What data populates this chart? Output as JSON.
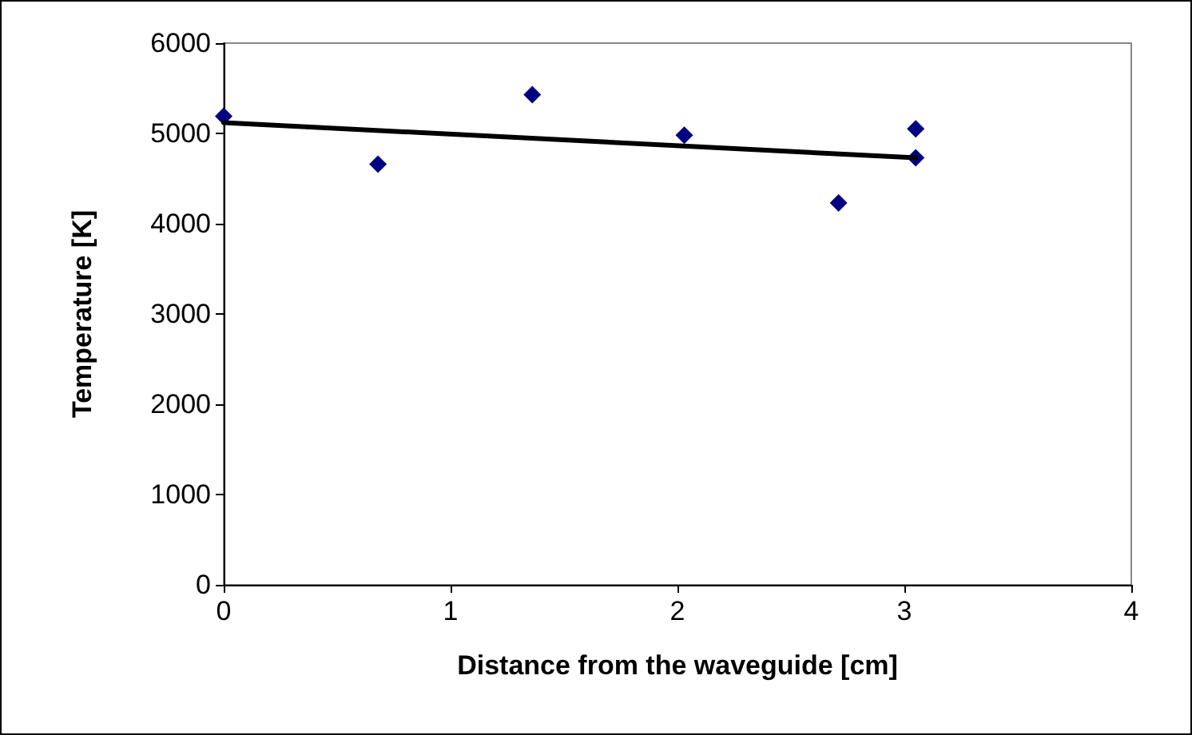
{
  "chart_data": {
    "type": "scatter",
    "xlabel": "Distance from the waveguide [cm]",
    "ylabel": "Temperature [K]",
    "xlim": [
      0,
      4
    ],
    "xticks": [
      0,
      1,
      2,
      3,
      4
    ],
    "ylim": [
      0,
      6000
    ],
    "yticks": [
      0,
      1000,
      2000,
      3000,
      4000,
      5000,
      6000
    ],
    "grid": false,
    "marker": "diamond",
    "series": [
      {
        "color": "#000080",
        "x": [
          0,
          0.68,
          1.36,
          2.03,
          2.71,
          3.05,
          3.05
        ],
        "values": [
          5190,
          4660,
          5430,
          4980,
          4230,
          5050,
          4730
        ]
      },
      {
        "type": "line",
        "color": "#000000",
        "x": [
          0,
          3.05
        ],
        "values": [
          5120,
          4730
        ],
        "marker": "none",
        "line_style": "solid"
      }
    ]
  }
}
